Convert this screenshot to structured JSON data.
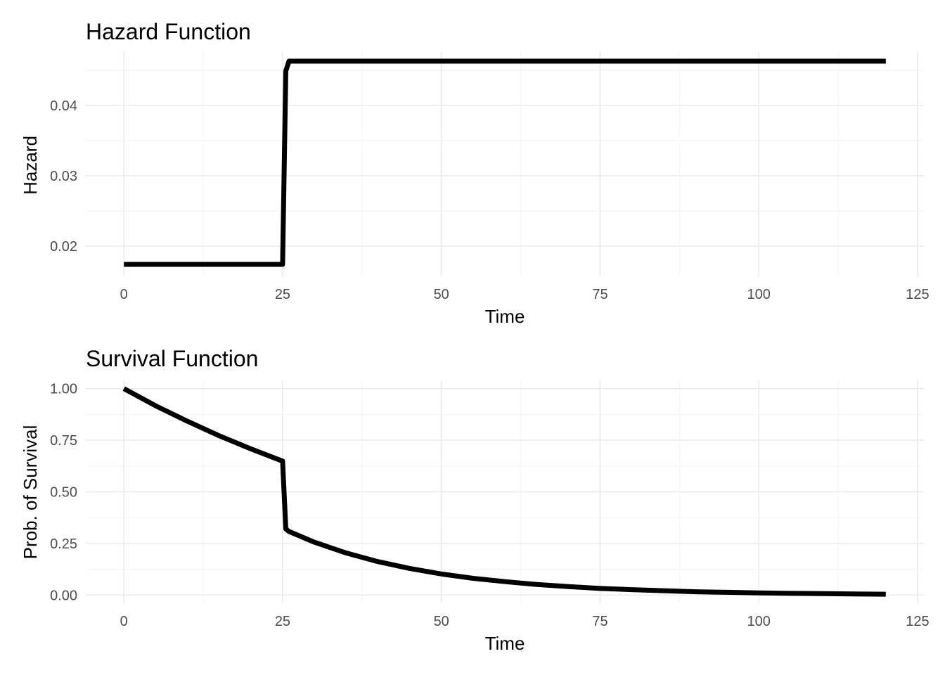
{
  "chart_data": [
    {
      "type": "line",
      "title": "Hazard Function",
      "xlabel": "Time",
      "ylabel": "Hazard",
      "xlim": [
        -6,
        126
      ],
      "ylim": [
        0.0157,
        0.0477
      ],
      "x_ticks": [
        0,
        25,
        50,
        75,
        100,
        125
      ],
      "x_tick_labels": [
        "0",
        "25",
        "50",
        "75",
        "100",
        "125"
      ],
      "y_ticks": [
        0.02,
        0.03,
        0.04
      ],
      "y_tick_labels": [
        "0.02",
        "0.03",
        "0.04"
      ],
      "grid": true,
      "legend": "none",
      "line_color": "#000000",
      "series": [
        {
          "x": [
            0,
            25,
            25.5,
            26,
            120
          ],
          "y": [
            0.0174,
            0.0174,
            0.0449,
            0.0463,
            0.0463
          ]
        }
      ]
    },
    {
      "type": "line",
      "title": "Survival Function",
      "xlabel": "Time",
      "ylabel": "Prob. of Survival",
      "xlim": [
        -6,
        126
      ],
      "ylim": [
        -0.04,
        1.04
      ],
      "x_ticks": [
        0,
        25,
        50,
        75,
        100,
        125
      ],
      "x_tick_labels": [
        "0",
        "25",
        "50",
        "75",
        "100",
        "125"
      ],
      "y_ticks": [
        0,
        0.25,
        0.5,
        0.75,
        1
      ],
      "y_tick_labels": [
        "0.00",
        "0.25",
        "0.50",
        "0.75",
        "1.00"
      ],
      "grid": true,
      "legend": "none",
      "line_color": "#000000",
      "series": [
        {
          "x": [
            0,
            5,
            10,
            15,
            20,
            25,
            25.5,
            26,
            30,
            35,
            40,
            45,
            50,
            55,
            60,
            65,
            70,
            75,
            80,
            85,
            90,
            95,
            100,
            105,
            110,
            115,
            120
          ],
          "y": [
            1.0,
            0.917,
            0.842,
            0.772,
            0.708,
            0.649,
            0.32,
            0.308,
            0.256,
            0.204,
            0.162,
            0.129,
            0.102,
            0.081,
            0.065,
            0.051,
            0.041,
            0.032,
            0.026,
            0.021,
            0.016,
            0.013,
            0.01,
            0.008,
            0.007,
            0.005,
            0.004
          ]
        }
      ]
    }
  ]
}
